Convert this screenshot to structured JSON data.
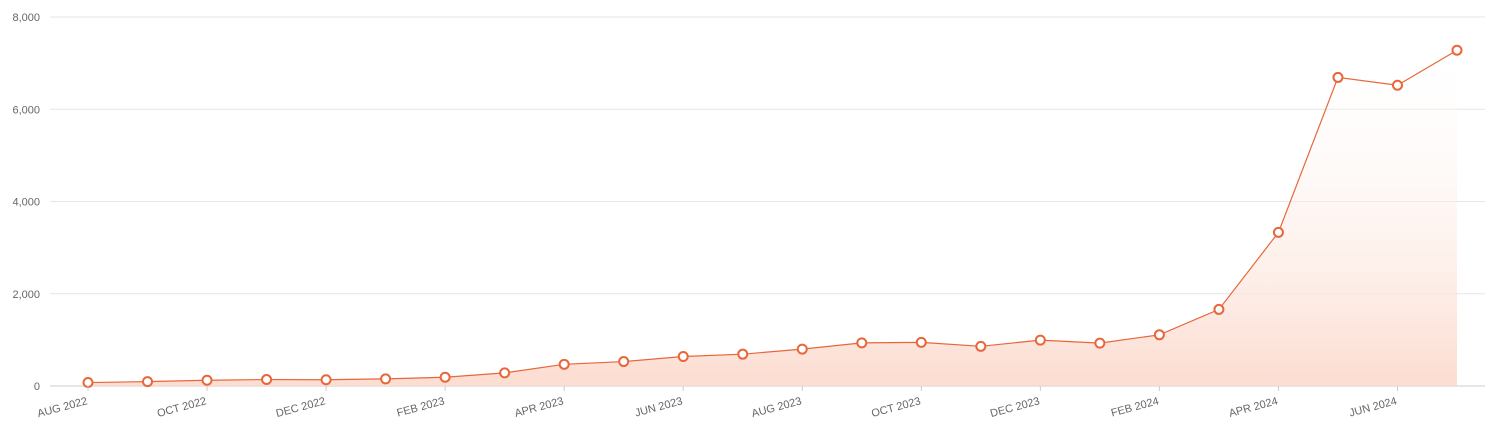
{
  "chart_data": {
    "type": "area",
    "title": "",
    "xlabel": "",
    "ylabel": "",
    "ylim": [
      0,
      8000
    ],
    "y_ticks": [
      0,
      2000,
      4000,
      6000,
      8000
    ],
    "y_tick_labels": [
      "0",
      "2,000",
      "4,000",
      "6,000",
      "8,000"
    ],
    "grid": true,
    "legend": "none",
    "colors": {
      "line": "#e8663a",
      "marker_fill": "#ffffff",
      "area_top": "#ffffff",
      "area_bottom": "#fbd9cc",
      "grid": "#e6e6e6",
      "axis": "#cccccc"
    },
    "x_tick_labels": [
      "AUG 2022",
      "OCT 2022",
      "DEC 2022",
      "FEB 2023",
      "APR 2023",
      "JUN 2023",
      "AUG 2023",
      "OCT 2023",
      "DEC 2023",
      "FEB 2024",
      "APR 2024",
      "JUN 2024"
    ],
    "x": [
      "2022-08",
      "2022-09",
      "2022-10",
      "2022-11",
      "2022-12",
      "2023-01",
      "2023-02",
      "2023-03",
      "2023-04",
      "2023-05",
      "2023-06",
      "2023-07",
      "2023-08",
      "2023-09",
      "2023-10",
      "2023-11",
      "2023-12",
      "2024-01",
      "2024-02",
      "2024-03",
      "2024-04",
      "2024-05",
      "2024-06",
      "2024-07"
    ],
    "series": [
      {
        "values": [
          75,
          95,
          125,
          140,
          135,
          155,
          190,
          285,
          470,
          530,
          640,
          690,
          800,
          935,
          945,
          860,
          995,
          930,
          1110,
          1660,
          3330,
          6690,
          6520,
          7280
        ]
      }
    ]
  }
}
